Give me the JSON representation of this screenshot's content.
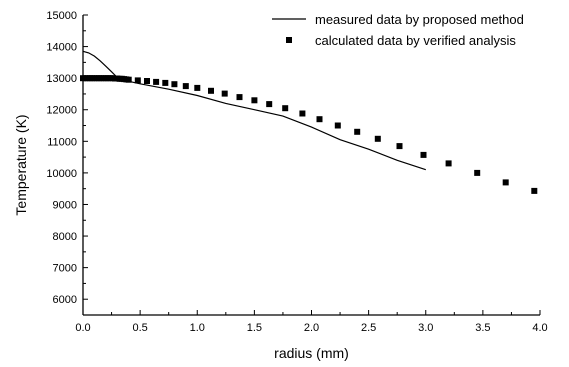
{
  "chart_data": {
    "type": "line",
    "title": "",
    "xlabel": "radius (mm)",
    "ylabel": "Temperature (K)",
    "xlim": [
      0.0,
      4.0
    ],
    "ylim": [
      5500,
      15000
    ],
    "x_ticks": [
      0.0,
      0.5,
      1.0,
      1.5,
      2.0,
      2.5,
      3.0,
      3.5,
      4.0
    ],
    "x_tick_labels": [
      "0.0",
      "0.5",
      "1.0",
      "1.5",
      "2.0",
      "2.5",
      "3.0",
      "3.5",
      "4.0"
    ],
    "y_ticks": [
      6000,
      7000,
      8000,
      9000,
      10000,
      11000,
      12000,
      13000,
      14000,
      15000
    ],
    "y_tick_labels": [
      "6000",
      "7000",
      "8000",
      "9000",
      "10000",
      "11000",
      "12000",
      "13000",
      "14000",
      "15000"
    ],
    "grid": false,
    "legend_position": "top-right",
    "series": [
      {
        "name": "measured data by proposed method",
        "style": "line",
        "color": "#000000",
        "x": [
          0.0,
          0.05,
          0.1,
          0.15,
          0.2,
          0.25,
          0.3,
          0.35,
          0.4,
          0.5,
          0.75,
          1.0,
          1.25,
          1.5,
          1.75,
          2.0,
          2.25,
          2.5,
          2.75,
          3.0
        ],
        "y": [
          13850,
          13800,
          13700,
          13550,
          13380,
          13200,
          13020,
          12950,
          12900,
          12820,
          12650,
          12450,
          12200,
          12000,
          11800,
          11450,
          11050,
          10750,
          10400,
          10100
        ]
      },
      {
        "name": "calculated data by verified analysis",
        "style": "marker",
        "marker": "square",
        "color": "#000000",
        "x": [
          0.0,
          0.02,
          0.04,
          0.06,
          0.08,
          0.1,
          0.12,
          0.14,
          0.16,
          0.18,
          0.2,
          0.22,
          0.24,
          0.26,
          0.28,
          0.3,
          0.32,
          0.34,
          0.36,
          0.38,
          0.4,
          0.48,
          0.56,
          0.64,
          0.72,
          0.8,
          0.9,
          1.0,
          1.12,
          1.24,
          1.37,
          1.5,
          1.63,
          1.77,
          1.92,
          2.07,
          2.23,
          2.4,
          2.58,
          2.77,
          2.98,
          3.2,
          3.45,
          3.7,
          3.95
        ],
        "y": [
          13000,
          13000,
          13000,
          13000,
          13000,
          13000,
          13000,
          13000,
          13000,
          13000,
          13000,
          13000,
          13000,
          13000,
          12990,
          12990,
          12980,
          12980,
          12970,
          12960,
          12950,
          12930,
          12910,
          12880,
          12850,
          12810,
          12750,
          12690,
          12600,
          12510,
          12400,
          12300,
          12180,
          12050,
          11880,
          11700,
          11500,
          11300,
          11080,
          10850,
          10570,
          10300,
          10000,
          9700,
          9430
        ]
      }
    ]
  }
}
